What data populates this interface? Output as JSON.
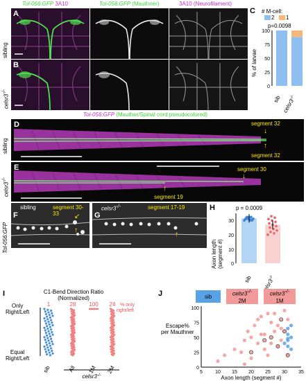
{
  "top_headers": {
    "col1_part1": "Tol-056:GFP",
    "col1_part2": "3A10",
    "col2_part1": "Tol-056:GFP",
    "col2_part2": "(Mauthner)",
    "col3": "3A10 (Neurofilament)"
  },
  "panels": {
    "A": "A",
    "B": "B",
    "C": "C",
    "D": "D",
    "E": "E",
    "F": "F",
    "G": "G",
    "H": "H",
    "I": "I",
    "J": "J"
  },
  "row_labels": {
    "sibling": "sibling",
    "mutant": "celsr3",
    "mutant_sup": "-/-",
    "tol": "Tol-056:GFP"
  },
  "panel_D_header": {
    "part1": "Tol-056:GFP",
    "part2": "(Mauther/Spinal cord pseudocolored)"
  },
  "panel_D_annotations": {
    "top": "segment 32",
    "bottom": "segment 32"
  },
  "panel_E_annotations": {
    "top": "segment 30",
    "bottom": "segment 19"
  },
  "panel_F": {
    "left": "sibling",
    "right": "segment 30-33"
  },
  "panel_G": {
    "left": "celsr3",
    "left_sup": "-/-",
    "right": "segment 17-19"
  },
  "panel_C": {
    "legend_title": "# M-cell:",
    "legend": [
      {
        "name": "2",
        "color": "#8fbff0"
      },
      {
        "name": "1",
        "color": "#f5b77a"
      }
    ],
    "pvalue": "p=0.0098",
    "ylabel": "% of larvae",
    "yticks": [
      "0",
      "25",
      "50",
      "75",
      "100"
    ],
    "xticks": [
      "sib",
      "celsr3"
    ],
    "xsup": "-/-"
  },
  "panel_H": {
    "pvalue": "p = 0.0009",
    "ylabel_line1": "Axon length",
    "ylabel_line2": "(segment #)",
    "yticks": [
      "0",
      "10",
      "20",
      "30"
    ],
    "xticks": [
      "sib",
      "celsr3"
    ],
    "xsup": "-/-"
  },
  "panel_I": {
    "title_line1": "C1-Bend Direction Ratio",
    "title_line2": "(Normalized)",
    "ytop_line1": "Only",
    "ytop_line2": "Right/Left",
    "ybottom_line1": "Equal",
    "ybottom_line2": "Right/Left",
    "percents": [
      "1",
      "28",
      "100",
      "24"
    ],
    "percent_suffix_line1": "% only",
    "percent_suffix_line2": "right/left",
    "xticks": [
      "sib",
      "All",
      "1M",
      "2M"
    ],
    "xgroup": "celsr3",
    "xgroup_sup": "-/-"
  },
  "panel_J": {
    "legend": [
      {
        "label": "sib",
        "color": "#5aa2e6"
      },
      {
        "label": "celsr3",
        "sup": "-/-",
        "sub": "2M",
        "color": "#f29a9a"
      },
      {
        "label": "celsr3",
        "sup": "-/-",
        "sub": "1M",
        "color": "#f29a9a"
      }
    ],
    "ylabel_line1": "Escape%",
    "ylabel_line2": "per Mauthner",
    "xlabel": "Axon length (segment #)",
    "xticks": [
      "5",
      "10",
      "15",
      "20",
      "25",
      "30",
      "35"
    ],
    "yticks": [
      "0",
      "25",
      "50",
      "75",
      "100"
    ]
  },
  "chart_data": [
    {
      "type": "bar",
      "panel": "C",
      "categories": [
        "sib",
        "celsr3-/-"
      ],
      "series": [
        {
          "name": "2",
          "values": [
            100,
            88
          ]
        },
        {
          "name": "1",
          "values": [
            0,
            12
          ]
        }
      ],
      "ylabel": "% of larvae",
      "ylim": [
        0,
        100
      ]
    },
    {
      "type": "bar",
      "panel": "H",
      "categories": [
        "sib",
        "celsr3-/-"
      ],
      "values": [
        31.5,
        27
      ],
      "ylabel": "Axon length (segment #)",
      "ylim": [
        0,
        35
      ]
    },
    {
      "type": "scatter",
      "panel": "I",
      "categories": [
        "sib",
        "All",
        "1M",
        "2M"
      ],
      "percent_only": [
        1,
        28,
        100,
        24
      ]
    },
    {
      "type": "scatter",
      "panel": "J",
      "xlabel": "Axon length (segment #)",
      "ylabel": "Escape% per Mauthner",
      "xlim": [
        5,
        35
      ],
      "ylim": [
        0,
        100
      ],
      "series": [
        {
          "name": "sib",
          "x": [
            30,
            31,
            31,
            32,
            31,
            32,
            30,
            31,
            32,
            31
          ],
          "y": [
            60,
            55,
            45,
            70,
            35,
            50,
            40,
            65,
            30,
            48
          ]
        },
        {
          "name": "celsr3-/- 2M",
          "x": [
            10,
            12,
            15,
            17,
            18,
            19,
            20,
            21,
            22,
            23,
            24,
            25,
            26,
            27,
            28,
            29,
            30,
            31,
            20,
            24,
            27,
            29,
            31,
            18,
            22,
            26,
            30,
            28,
            25,
            23
          ],
          "y": [
            10,
            20,
            30,
            25,
            45,
            60,
            15,
            70,
            40,
            85,
            55,
            20,
            75,
            90,
            35,
            65,
            95,
            80,
            50,
            30,
            60,
            45,
            20,
            5,
            80,
            40,
            60,
            70,
            90,
            55
          ]
        },
        {
          "name": "celsr3-/- 1M",
          "x": [
            20,
            24,
            28,
            30,
            31,
            26,
            29
          ],
          "y": [
            25,
            45,
            35,
            60,
            20,
            50,
            80
          ]
        }
      ]
    }
  ]
}
